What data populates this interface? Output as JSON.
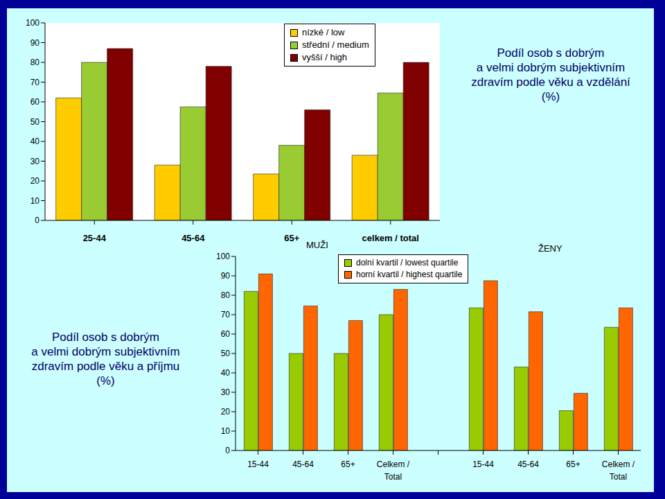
{
  "chart_data": [
    {
      "type": "bar",
      "title": "Podíl osob s dobrým\na velmi dobrým subjektivním\nzdravím podle věku a vzdělání\n(%)",
      "categories": [
        "25-44",
        "45-64",
        "65+",
        "celkem / total"
      ],
      "series": [
        {
          "name": "nízké / low",
          "color": "#ffcc00",
          "values": [
            62,
            28,
            23.5,
            33
          ]
        },
        {
          "name": "střední / medium",
          "color": "#99cc33",
          "values": [
            80,
            57.5,
            38,
            64.5
          ]
        },
        {
          "name": "vyšší / high",
          "color": "#800000",
          "values": [
            87,
            78,
            56,
            80
          ]
        }
      ],
      "ylim": [
        0,
        100
      ],
      "yticks": [
        0,
        10,
        20,
        30,
        40,
        50,
        60,
        70,
        80,
        90,
        100
      ],
      "grid": false
    },
    {
      "type": "bar",
      "title": "Podíl osob s dobrým\na velmi dobrým subjektivním\nzdravím podle věku a příjmu\n(%)",
      "annotations": [
        "MUŽI",
        "ŽENY"
      ],
      "categories": [
        "15-44",
        "45-64",
        "65+",
        "Celkem / Total",
        null,
        "15-44",
        "45-64",
        "65+",
        "Celkem / Total"
      ],
      "series": [
        {
          "name": "dolní kvartil / lowest quartile",
          "color": "#99cc00",
          "values": [
            82,
            50,
            50,
            70,
            null,
            73.5,
            43,
            20.5,
            63.5
          ]
        },
        {
          "name": "horní kvartil / highest quartile",
          "color": "#ff6600",
          "values": [
            91,
            74.5,
            67,
            83,
            null,
            87.5,
            71.5,
            29.5,
            73.5
          ]
        }
      ],
      "ylim": [
        0,
        100
      ],
      "yticks": [
        0,
        10,
        20,
        30,
        40,
        50,
        60,
        70,
        80,
        90,
        100
      ],
      "grid": false
    }
  ]
}
